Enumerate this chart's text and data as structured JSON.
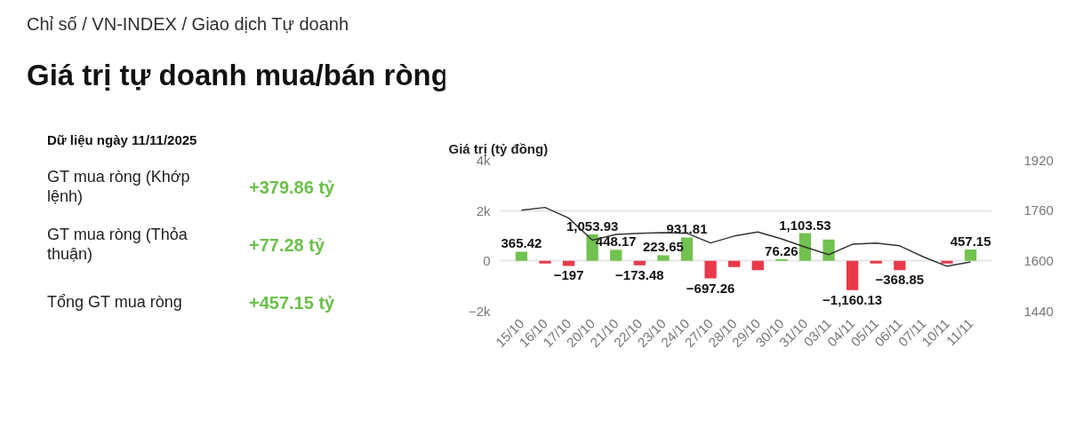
{
  "chart_data": [
    {
      "type": "other",
      "title": "Giá trị tự doanh mua/bán ròng",
      "subtitle": "Chỉ số / VN-INDEX / Giao dịch Tự doanh",
      "annotations": [
        "Dữ liệu ngày 11/11/2025",
        "GT mua ròng (Khớp lệnh)",
        "+379.86 tỷ",
        "GT mua ròng (Thỏa thuận)",
        "+77.28 tỷ",
        "Tổng GT mua ròng",
        "+457.15 tỷ"
      ]
    },
    {
      "type": "bar",
      "ylabel": "Giá trị (tỷ đồng)",
      "categories": [
        "15/10",
        "16/10",
        "17/10",
        "20/10",
        "21/10",
        "22/10",
        "23/10",
        "24/10",
        "27/10",
        "28/10",
        "29/10",
        "30/10",
        "31/10",
        "03/11",
        "04/11",
        "05/11",
        "06/11",
        "07/11",
        "10/11",
        "11/11"
      ],
      "series": [
        {
          "type": "bar",
          "colors": [
            "#72c24f",
            "#e8394a",
            "#e8394a",
            "#72c24f",
            "#72c24f",
            "#e8394a",
            "#72c24f",
            "#72c24f",
            "#e8394a",
            "#e8394a",
            "#e8394a",
            "#72c24f",
            "#72c24f",
            "#72c24f",
            "#e8394a",
            "#e8394a",
            "#e8394a",
            "#72c24f",
            "#e8394a",
            "#72c24f"
          ],
          "values": [
            365.42,
            -100,
            -197,
            1053.93,
            448.17,
            -173.48,
            223.65,
            931.81,
            -697.26,
            -240,
            -370,
            76.26,
            1103.53,
            850,
            -1160.13,
            -100,
            -368.85,
            null,
            -100,
            457.15
          ],
          "value_labels": [
            "365.42",
            null,
            "−197",
            "1,053.93",
            "448.17",
            "−173.48",
            "223.65",
            "931.81",
            "−697.26",
            null,
            null,
            "76.26",
            "1,103.53",
            null,
            "−1,160.13",
            null,
            "−368.85",
            null,
            null,
            "457.15"
          ]
        },
        {
          "type": "line",
          "axis": "y2",
          "color": "#333333",
          "values": [
            1761,
            1770,
            1736,
            1666,
            1684,
            1688,
            1690,
            1688,
            1657,
            1679,
            1692,
            1670,
            1644,
            1620,
            1653,
            1657,
            1648,
            1613,
            1583,
            1597
          ]
        }
      ],
      "ylim": [
        -2000,
        4000
      ],
      "yticks": [
        {
          "value": -2000,
          "label": "−2k"
        },
        0,
        {
          "value": 2000,
          "label": "2k"
        },
        {
          "value": 4000,
          "label": "4k"
        }
      ],
      "y2lim": [
        1440,
        1920
      ],
      "y2ticks": [
        1440,
        1600,
        1760,
        1920
      ],
      "grid": "y",
      "marker": "none",
      "line_style": "solid"
    }
  ]
}
